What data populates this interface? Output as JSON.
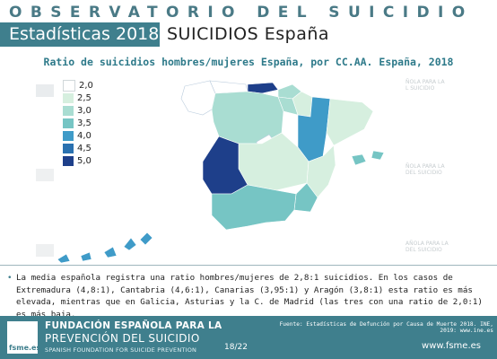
{
  "header": {
    "title": "OBSERVATORIO DEL SUICIDIO",
    "subtitle_left": "Estadísticas 2018",
    "subtitle_right": "SUICIDIOS España"
  },
  "chart": {
    "title": "Ratio de suicidios hombres/mujeres España, por CC.AA. España, 2018"
  },
  "chart_data": {
    "type": "choropleth-map",
    "title": "Ratio de suicidios hombres/mujeres España, por CC.AA. España, 2018",
    "legend": {
      "placement": "top-left",
      "classes": [
        {
          "label": "2,0",
          "color": "#ffffff"
        },
        {
          "label": "2,5",
          "color": "#d6efdf"
        },
        {
          "label": "3,0",
          "color": "#a9ddd2"
        },
        {
          "label": "3,5",
          "color": "#76c5c4"
        },
        {
          "label": "4,0",
          "color": "#3f9bc8"
        },
        {
          "label": "4,5",
          "color": "#2a71b0"
        },
        {
          "label": "5,0",
          "color": "#1e3f8a"
        }
      ]
    },
    "regions": [
      {
        "name": "Extremadura",
        "value": 4.8
      },
      {
        "name": "Cantabria",
        "value": 4.6
      },
      {
        "name": "Canarias",
        "value": 3.95
      },
      {
        "name": "Aragón",
        "value": 3.8
      },
      {
        "name": "Galicia",
        "value": 2.0
      },
      {
        "name": "Asturias",
        "value": 2.0
      },
      {
        "name": "C. de Madrid",
        "value": 2.0
      }
    ]
  },
  "watermarks": {
    "top_left": "",
    "right_1": "ÑOLA PARA LA\nL SUICIDIO",
    "right_2": "ÑOLA PARA LA\nDEL SUICIDIO",
    "right_3": "AÑOLA PARA LA\nDEL SUICIDIO"
  },
  "note": {
    "bullet": "•",
    "text": "La media española registra una ratio hombres/mujeres de 2,8:1 suicidios. En los casos de Extremadura (4,8:1), Cantabria (4,6:1), Canarias (3,95:1) y Aragón (3,8:1) esta ratio es más elevada, mientras que en Galicia, Asturias y la C. de Madrid (las tres con una ratio de 2,0:1) es más baja."
  },
  "footer": {
    "logo_text": "fsme.es",
    "org_line1": "FUNDACIÓN ESPAÑOLA PARA LA",
    "org_line2": "PREVENCIÓN DEL SUICIDIO",
    "org_line3": "SPANISH FOUNDATION FOR SUICIDE PREVENTION",
    "source": "Fuente: Estadísticas de Defunción por Causa de Muerte 2018. INE, 2019: www.ine.es",
    "page": "18/22",
    "website": "www.fsme.es"
  }
}
